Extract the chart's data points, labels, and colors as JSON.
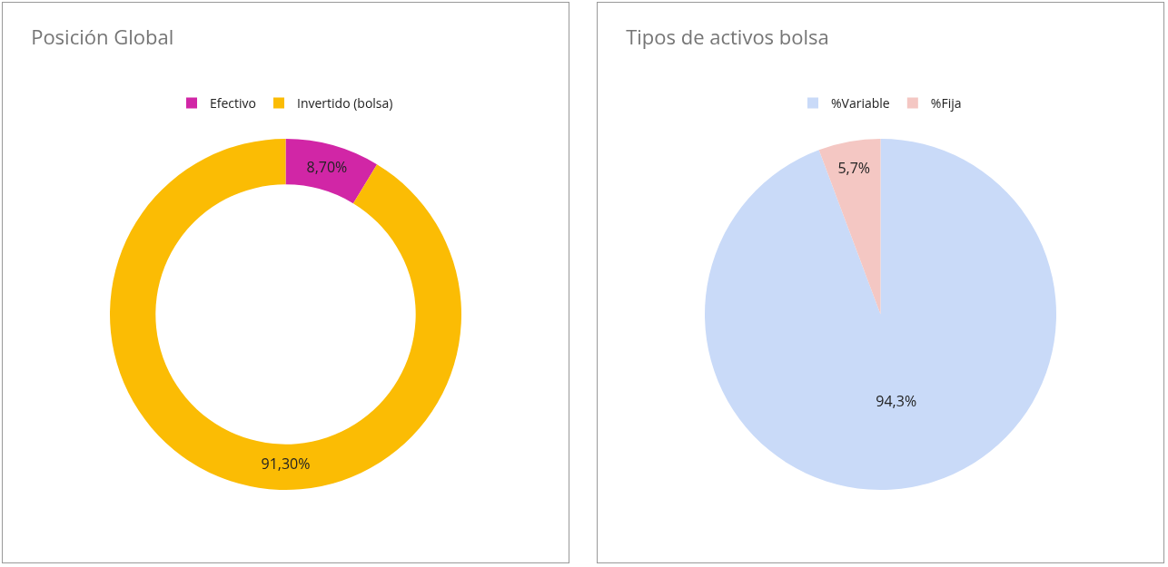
{
  "chart_data": [
    {
      "type": "donut",
      "title": "Posición Global",
      "categories": [
        "Efectivo",
        "Invertido (bolsa)"
      ],
      "values": [
        8.7,
        91.3
      ],
      "colors": [
        "#d126a6",
        "#fbbc04"
      ],
      "value_labels": [
        "8,70%",
        "91,30%"
      ],
      "legend": "top"
    },
    {
      "type": "pie",
      "title": "Tipos de activos bolsa",
      "categories": [
        "%Variable",
        "%Fija"
      ],
      "values": [
        94.3,
        5.7
      ],
      "colors": [
        "#c9daf8",
        "#f4c7c3"
      ],
      "value_labels": [
        "94,3%",
        "5,7%"
      ],
      "legend": "top"
    }
  ]
}
